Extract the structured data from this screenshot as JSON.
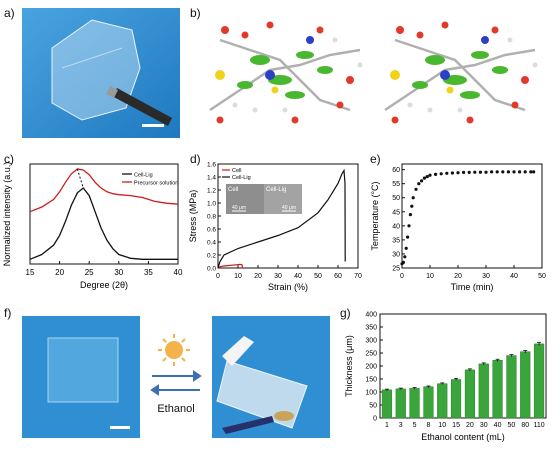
{
  "panel_labels": {
    "a": "a)",
    "b": "b)",
    "c": "c)",
    "d": "d)",
    "e": "e)",
    "f": "f)",
    "g": "g)"
  },
  "colors": {
    "photo_blue": "#2f8fd2",
    "red_curve": "#d01c1c",
    "black_curve": "#111111",
    "bar_green": "#3aa53a",
    "sun": "#f2b34a",
    "arrow": "#3d6fb5"
  },
  "panel_f": {
    "label": "Ethanol"
  },
  "chart_data": [
    {
      "panel": "c",
      "type": "line",
      "xlabel": "Degree (2θ)",
      "ylabel": "Normalized intensity (a.u.)",
      "xlim": [
        15,
        40
      ],
      "xticks": [
        "15",
        "20",
        "25",
        "30",
        "35",
        "40"
      ],
      "legend": [
        "Cell-Lig",
        "Precursor solution"
      ],
      "legend_position": "top-right",
      "series": [
        {
          "name": "Precursor solution",
          "color": "#d01c1c",
          "x": [
            15,
            17,
            19,
            20,
            21,
            22,
            23,
            24,
            25,
            26,
            27,
            28,
            29,
            30,
            32,
            34,
            36,
            38,
            40
          ],
          "y": [
            0.55,
            0.6,
            0.68,
            0.76,
            0.86,
            0.95,
            1.0,
            0.99,
            0.94,
            0.86,
            0.8,
            0.76,
            0.74,
            0.73,
            0.72,
            0.7,
            0.66,
            0.64,
            0.63
          ]
        },
        {
          "name": "Cell-Lig",
          "color": "#111111",
          "x": [
            15,
            17,
            19,
            20,
            21,
            22,
            23,
            24,
            25,
            26,
            27,
            28,
            29,
            30,
            32,
            34,
            36,
            38,
            40
          ],
          "y": [
            0.05,
            0.1,
            0.2,
            0.3,
            0.45,
            0.62,
            0.75,
            0.8,
            0.72,
            0.55,
            0.38,
            0.25,
            0.16,
            0.1,
            0.06,
            0.05,
            0.05,
            0.05,
            0.05
          ]
        }
      ]
    },
    {
      "panel": "d",
      "type": "line",
      "xlabel": "Strain (%)",
      "ylabel": "Stress (MPa)",
      "xlim": [
        0,
        70
      ],
      "ylim": [
        0,
        1.6
      ],
      "xticks": [
        "0",
        "10",
        "20",
        "30",
        "40",
        "50",
        "60",
        "70"
      ],
      "yticks": [
        "0.0",
        "0.2",
        "0.4",
        "0.6",
        "0.8",
        "1.0",
        "1.2",
        "1.4",
        "1.6"
      ],
      "legend": [
        "Cell",
        "Cell-Lig"
      ],
      "legend_position": "top-left",
      "inset_labels": [
        "Cell",
        "Cell-Lig",
        "40 μm",
        "40 μm"
      ],
      "series": [
        {
          "name": "Cell",
          "color": "#d01c1c",
          "x": [
            0,
            1,
            3,
            6,
            9,
            11,
            12,
            12.3
          ],
          "y": [
            0,
            0.02,
            0.03,
            0.04,
            0.05,
            0.055,
            0.05,
            0
          ]
        },
        {
          "name": "Cell-Lig",
          "color": "#111111",
          "x": [
            0,
            1,
            3,
            10,
            20,
            30,
            40,
            50,
            55,
            60,
            62,
            63,
            63.5,
            63.6
          ],
          "y": [
            0,
            0.1,
            0.2,
            0.3,
            0.4,
            0.5,
            0.62,
            0.85,
            1.05,
            1.3,
            1.45,
            1.5,
            1.3,
            0.1
          ]
        }
      ]
    },
    {
      "panel": "e",
      "type": "scatter",
      "xlabel": "Time (min)",
      "ylabel": "Temperature (°C)",
      "xlim": [
        0,
        50
      ],
      "ylim": [
        25,
        62
      ],
      "xticks": [
        "0",
        "10",
        "20",
        "30",
        "40",
        "50"
      ],
      "yticks": [
        "25",
        "30",
        "35",
        "40",
        "45",
        "50",
        "55",
        "60"
      ],
      "series": [
        {
          "name": "",
          "x": [
            0,
            0.5,
            1,
            1.5,
            2,
            2.5,
            3,
            3.5,
            4,
            5,
            6,
            7,
            8,
            9,
            10,
            12,
            14,
            16,
            18,
            20,
            22,
            24,
            26,
            28,
            30,
            32,
            34,
            36,
            38,
            40,
            42,
            44,
            46,
            47
          ],
          "y": [
            26.5,
            27,
            29,
            32,
            36,
            40,
            44,
            47,
            50,
            53,
            55,
            56,
            57,
            57.5,
            58,
            58.3,
            58.5,
            58.7,
            58.8,
            58.9,
            59,
            59,
            59.1,
            59.1,
            59.1,
            59.2,
            59.2,
            59.2,
            59.2,
            59.2,
            59.2,
            59.2,
            59.2,
            59.2
          ]
        }
      ]
    },
    {
      "panel": "g",
      "type": "bar",
      "xlabel": "Ethanol content (mL)",
      "ylabel": "Thickness (μm)",
      "ylim": [
        0,
        400
      ],
      "yticks": [
        "0",
        "50",
        "100",
        "150",
        "200",
        "250",
        "300",
        "350",
        "400"
      ],
      "categories": [
        "1",
        "3",
        "5",
        "8",
        "10",
        "15",
        "20",
        "30",
        "40",
        "50",
        "80",
        "110"
      ],
      "values": [
        108,
        112,
        114,
        120,
        132,
        148,
        185,
        208,
        222,
        240,
        255,
        285
      ],
      "errors": [
        3,
        3,
        3,
        3,
        3,
        4,
        4,
        4,
        4,
        4,
        5,
        6
      ]
    }
  ]
}
